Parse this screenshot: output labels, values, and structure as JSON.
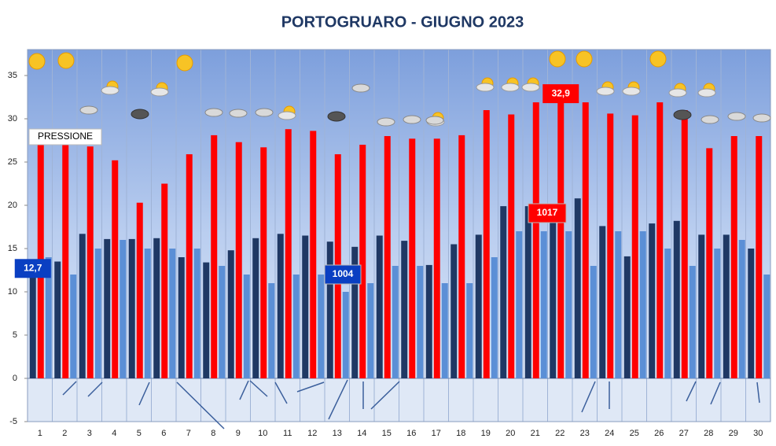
{
  "chart_data": {
    "type": "bar",
    "title": "PORTOGRUARO - GIUGNO 2023",
    "categories": [
      "1",
      "2",
      "3",
      "4",
      "5",
      "6",
      "7",
      "8",
      "9",
      "10",
      "11",
      "12",
      "13",
      "14",
      "15",
      "16",
      "17",
      "18",
      "19",
      "20",
      "21",
      "22",
      "23",
      "24",
      "25",
      "26",
      "27",
      "28",
      "29",
      "30"
    ],
    "series": [
      {
        "color": "#1f3864",
        "values": [
          12.7,
          13.5,
          16.7,
          16.1,
          16.1,
          16.2,
          14.0,
          13.4,
          14.8,
          16.2,
          16.7,
          16.5,
          15.8,
          15.2,
          16.5,
          15.9,
          13.1,
          15.5,
          16.6,
          19.9,
          19.9,
          18.5,
          20.8,
          17.6,
          14.1,
          17.9,
          18.2,
          16.6,
          16.6,
          15.0
        ],
        "value_labels": [
          "12,7",
          null,
          null,
          null,
          null,
          null,
          null,
          null,
          null,
          null,
          null,
          null,
          null,
          null,
          null,
          null,
          null,
          null,
          null,
          null,
          null,
          null,
          null,
          null,
          null,
          null,
          null,
          null,
          null,
          null
        ]
      },
      {
        "color": "#ff0000",
        "values": [
          27.0,
          27.0,
          26.8,
          25.2,
          20.3,
          22.5,
          25.9,
          28.1,
          27.3,
          26.7,
          28.8,
          28.6,
          25.9,
          27.0,
          28.0,
          27.7,
          27.7,
          28.1,
          31.0,
          30.5,
          31.9,
          32.9,
          31.9,
          30.6,
          30.4,
          31.9,
          31.0,
          26.6,
          28.0,
          28.0
        ],
        "value_labels": [
          null,
          null,
          null,
          null,
          null,
          null,
          null,
          null,
          null,
          null,
          null,
          null,
          null,
          null,
          null,
          null,
          null,
          null,
          null,
          null,
          null,
          "32,9",
          null,
          null,
          null,
          null,
          null,
          null,
          null,
          null
        ]
      },
      {
        "color": "#5b8fd6",
        "values": [
          14,
          12,
          15,
          16,
          15,
          15,
          15,
          13,
          12,
          11,
          12,
          12,
          10,
          11,
          13,
          13,
          11,
          11,
          14,
          17,
          17,
          17,
          13,
          17,
          17,
          15,
          13,
          15,
          16,
          12
        ]
      }
    ],
    "annotations": [
      "PRESSIONE",
      "1004",
      "1017"
    ],
    "ylim": [
      -5,
      38
    ],
    "yticks": [
      -5,
      0,
      5,
      10,
      15,
      20,
      25,
      30,
      35
    ]
  }
}
